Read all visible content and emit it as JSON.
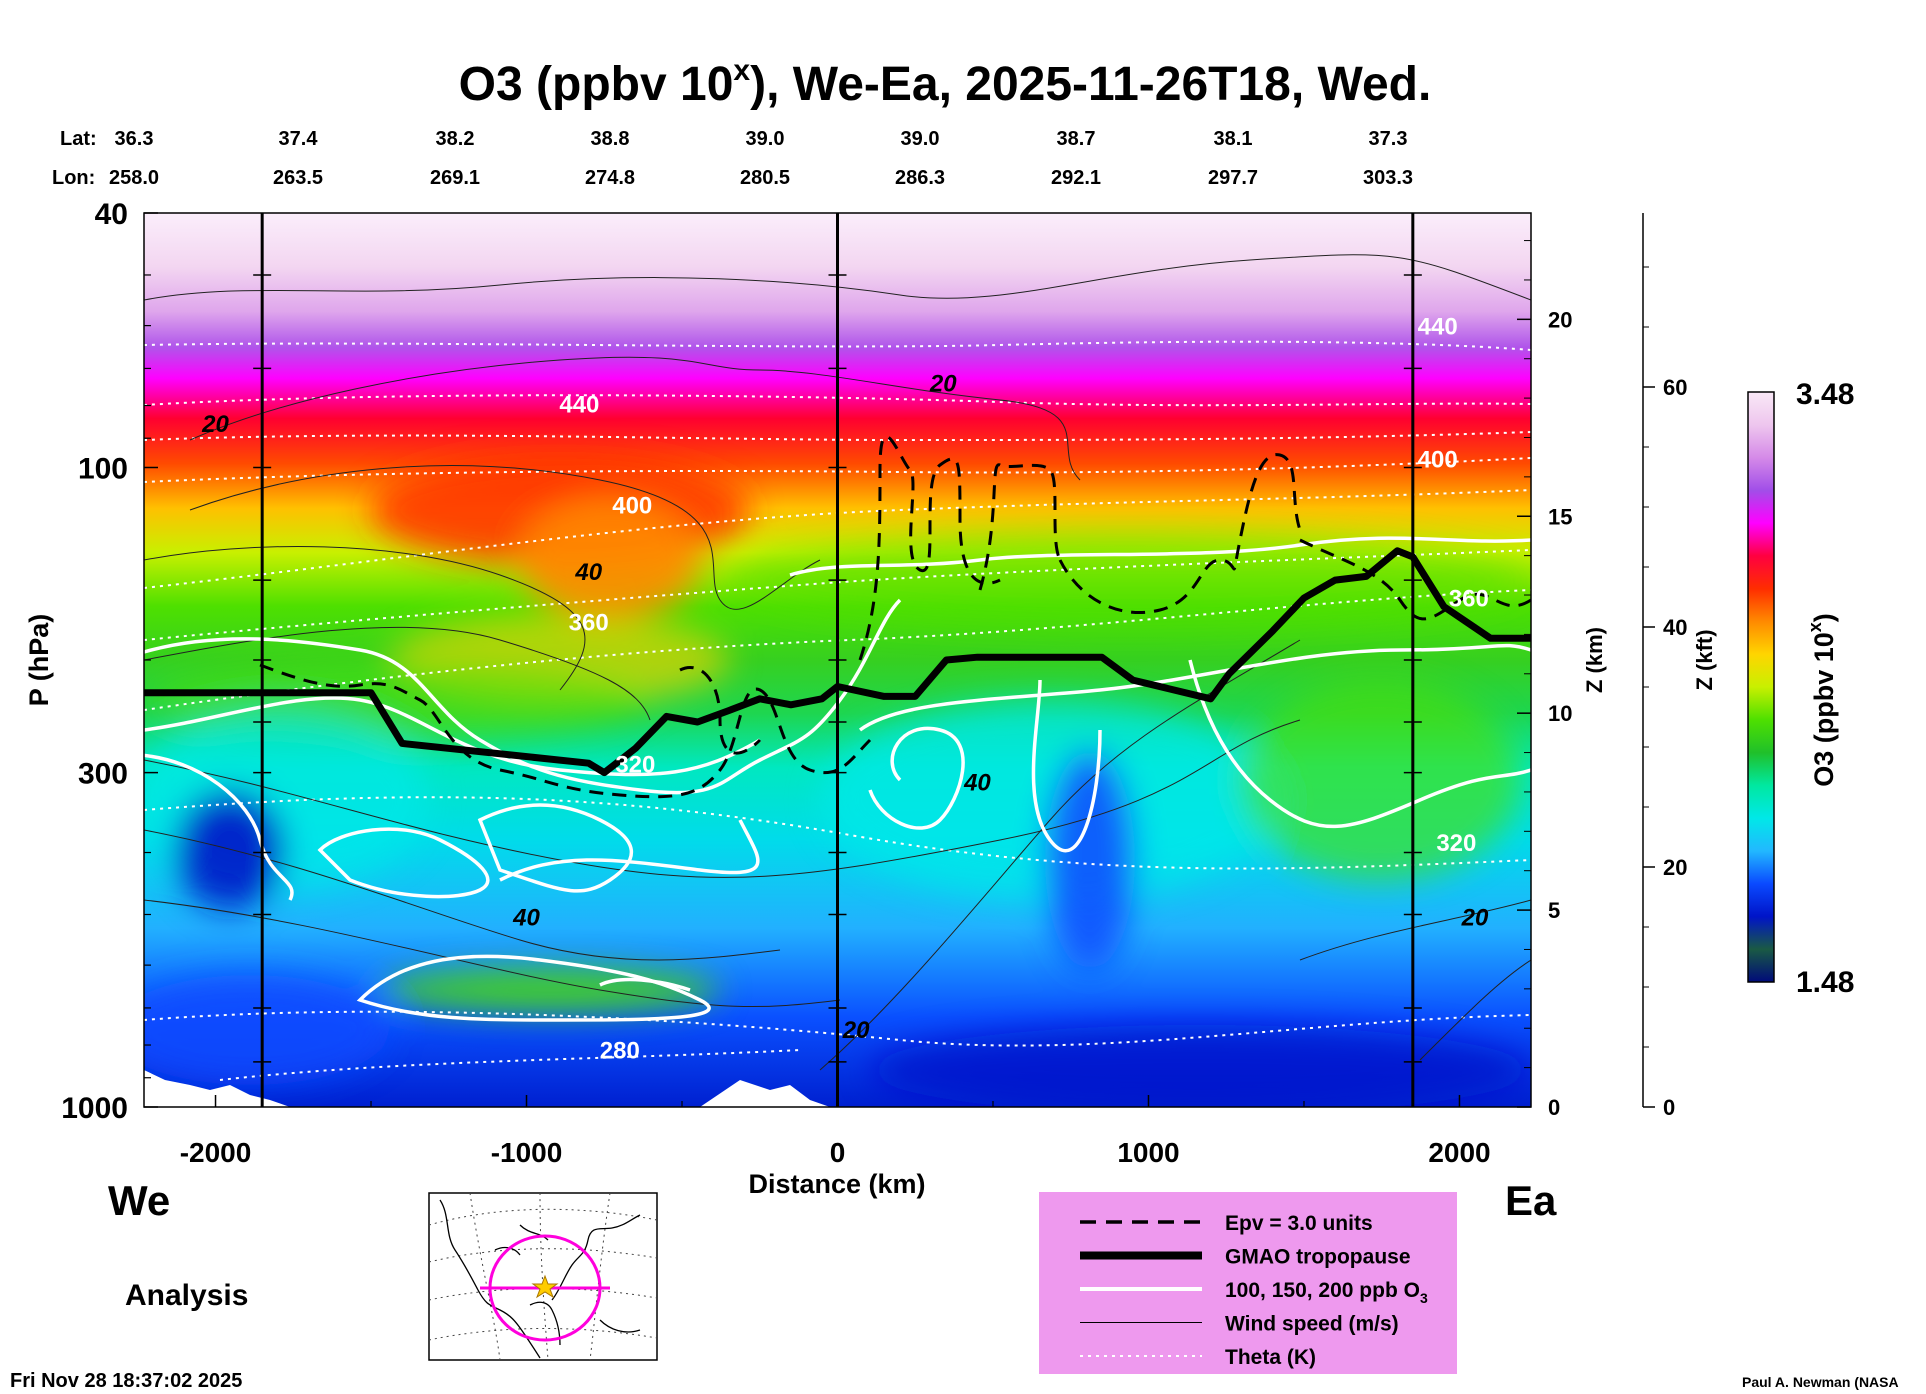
{
  "title_main": "O3 (ppbv 10",
  "title_sup": "x",
  "title_rest": "), We-Ea, 2025-11-26T18, Wed.",
  "lat_label": "Lat:",
  "lon_label": "Lon:",
  "lats": [
    "36.3",
    "37.4",
    "38.2",
    "38.8",
    "39.0",
    "39.0",
    "38.7",
    "38.1",
    "37.3"
  ],
  "lons": [
    "258.0",
    "263.5",
    "269.1",
    "274.8",
    "280.5",
    "286.3",
    "292.1",
    "297.7",
    "303.3"
  ],
  "left_word": "We",
  "right_word": "Ea",
  "analysis_label": "Analysis",
  "timestamp": "Fri Nov 28 18:37:02 2025",
  "credit": "Paul A. Newman (NASA",
  "colorbar": {
    "max_label": "3.48",
    "min_label": "1.48",
    "title_main": "O3 (ppbv 10",
    "title_sup": "x",
    "title_rest": ")",
    "stops": [
      "#f9e8f6",
      "#eec6ee",
      "#d58ae8",
      "#a14ee8",
      "#ff00ff",
      "#ff0040",
      "#ff2d00",
      "#ff8a00",
      "#ffd500",
      "#c8f000",
      "#4ee000",
      "#20c02a",
      "#00e8a0",
      "#00e8e8",
      "#22b8ff",
      "#0a4aff",
      "#0014c8",
      "#1a5a44",
      "#000a7a"
    ]
  },
  "legend": {
    "bg_color": "#ee99ee",
    "items": [
      {
        "label": "Epv = 3.0 units",
        "style": "dash"
      },
      {
        "label": "GMAO tropopause",
        "style": "thick"
      },
      {
        "label": "100, 150, 200 ppb O",
        "sub": "3",
        "style": "white"
      },
      {
        "label": "Wind speed (m/s)",
        "style": "thin"
      },
      {
        "label": "Theta (K)",
        "style": "dot"
      }
    ]
  },
  "chart_data": {
    "type": "cross-section heatmap",
    "title": "O3 (ppbv 10^x), We-Ea, 2025-11-26T18, Wed.",
    "xlabel": "Distance (km)",
    "ylabel": "P (hPa)",
    "right_axis_1_label": "Z (km)",
    "right_axis_2_label": "Z (kft)",
    "xlim": [
      -2230,
      2230
    ],
    "ylim_hpa": [
      1000,
      40
    ],
    "x_ticks": [
      -2000,
      -1000,
      0,
      1000,
      2000
    ],
    "x_tick_labels": [
      "-2000",
      "-1000",
      "0",
      "1000",
      "2000"
    ],
    "y_ticks_hpa": [
      40,
      100,
      300,
      1000
    ],
    "y_tick_labels": [
      "40",
      "100",
      "300",
      "1000"
    ],
    "z_km_ticks": [
      0,
      5,
      10,
      15,
      20
    ],
    "z_km_tick_labels": [
      "0",
      "5",
      "10",
      "15",
      "20"
    ],
    "z_kft_ticks": [
      0,
      20,
      40,
      60
    ],
    "z_kft_tick_labels": [
      "0",
      "20",
      "40",
      "60"
    ],
    "colorbar_range_log10_ppbv": [
      1.48,
      3.48
    ],
    "vertical_lines_km": [
      -1850,
      0,
      1850
    ],
    "tropopause": {
      "x": [
        -2230,
        -1500,
        -1400,
        -800,
        -750,
        -650,
        -550,
        -450,
        -350,
        -250,
        -150,
        -50,
        0,
        150,
        250,
        350,
        450,
        700,
        850,
        950,
        1200,
        1260,
        1400,
        1500,
        1600,
        1700,
        1800,
        1850,
        1950,
        2100,
        2230
      ],
      "p": [
        225,
        225,
        270,
        290,
        300,
        275,
        245,
        250,
        240,
        230,
        235,
        230,
        220,
        228,
        228,
        200,
        198,
        198,
        198,
        215,
        230,
        210,
        180,
        160,
        150,
        148,
        135,
        138,
        165,
        185,
        185
      ]
    },
    "wind_labels": [
      {
        "x": -2000,
        "p": 88,
        "text": "20"
      },
      {
        "x": 340,
        "p": 76,
        "text": "20"
      },
      {
        "x": -800,
        "p": 150,
        "text": "40"
      },
      {
        "x": 450,
        "p": 320,
        "text": "40"
      },
      {
        "x": -1000,
        "p": 520,
        "text": "40"
      },
      {
        "x": 60,
        "p": 780,
        "text": "20"
      },
      {
        "x": 2050,
        "p": 520,
        "text": "20"
      }
    ],
    "theta_labels": [
      {
        "x": -830,
        "p": 82,
        "text": "440"
      },
      {
        "x": 1930,
        "p": 62,
        "text": "440"
      },
      {
        "x": -660,
        "p": 118,
        "text": "400"
      },
      {
        "x": 1930,
        "p": 100,
        "text": "400"
      },
      {
        "x": -800,
        "p": 180,
        "text": "360"
      },
      {
        "x": 2030,
        "p": 165,
        "text": "360"
      },
      {
        "x": -650,
        "p": 300,
        "text": "320"
      },
      {
        "x": 1990,
        "p": 398,
        "text": "320"
      },
      {
        "x": -700,
        "p": 840,
        "text": "280"
      }
    ]
  }
}
